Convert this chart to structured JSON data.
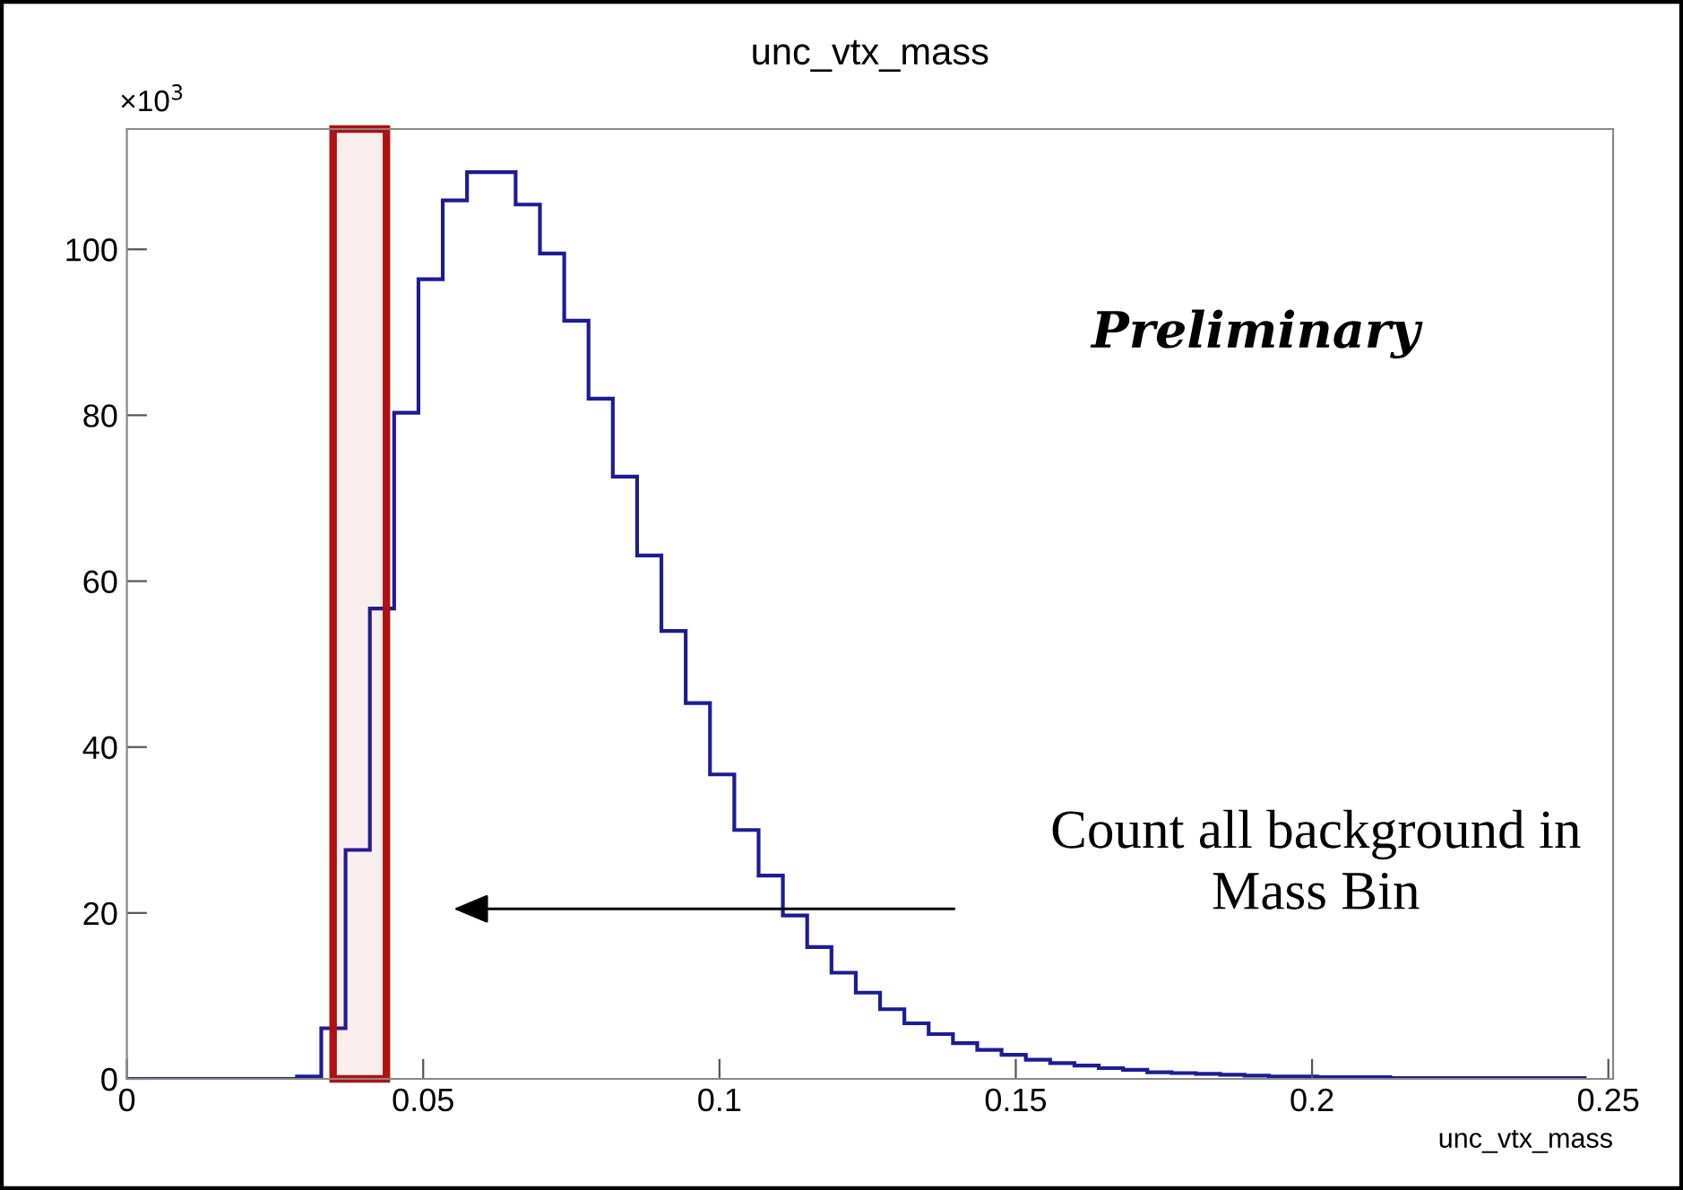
{
  "chart_data": {
    "type": "histogram",
    "title": "unc_vtx_mass",
    "xlabel": "unc_vtx_mass",
    "color": "#1c1c96",
    "bins": [
      0,
      0.0041,
      0.0082,
      0.0123,
      0.0164,
      0.0205,
      0.0246,
      0.0287,
      0.0328,
      0.0369,
      0.041,
      0.0451,
      0.0492,
      0.0533,
      0.0574,
      0.0615,
      0.0656,
      0.0697,
      0.0738,
      0.0779,
      0.082,
      0.0861,
      0.0902,
      0.0943,
      0.0984,
      0.1025,
      0.1066,
      0.1107,
      0.1148,
      0.1189,
      0.123,
      0.1271,
      0.1312,
      0.1353,
      0.1394,
      0.1435,
      0.1476,
      0.1517,
      0.1558,
      0.1599,
      0.164,
      0.1681,
      0.1722,
      0.1763,
      0.1804,
      0.1845,
      0.1886,
      0.1927,
      0.1968,
      0.2009,
      0.205,
      0.2091,
      0.2132,
      0.2173,
      0.2214,
      0.2255,
      0.2296,
      0.2337,
      0.2378,
      0.2419,
      0.246
    ],
    "values": [
      0,
      0,
      0,
      0,
      0,
      0,
      0,
      0.3,
      6.1,
      27.6,
      56.7,
      80.3,
      96.4,
      105.9,
      109.3,
      109.3,
      105.4,
      99.5,
      91.4,
      82.0,
      72.6,
      63.1,
      54.0,
      45.3,
      36.7,
      30.0,
      24.5,
      19.7,
      15.9,
      12.8,
      10.4,
      8.4,
      6.7,
      5.4,
      4.3,
      3.5,
      2.9,
      2.3,
      1.9,
      1.6,
      1.3,
      1.1,
      0.8,
      0.7,
      0.6,
      0.5,
      0.4,
      0.3,
      0.3,
      0.2,
      0.2,
      0.2,
      0.1,
      0.1,
      0.1,
      0.1,
      0.1,
      0.1,
      0.1,
      0.1
    ],
    "xlim": [
      0,
      0.2508
    ],
    "xticks": [
      0,
      0.05,
      0.1,
      0.15,
      0.2,
      0.25
    ],
    "ylim": [
      0,
      114.5
    ],
    "yticks": [
      0,
      20,
      40,
      60,
      80,
      100
    ],
    "bands": [
      {
        "axis": "x",
        "from": 0.0348,
        "to": 0.0438,
        "color": "#b01010"
      }
    ],
    "annotations": [
      "×10$^{3}$",
      "Preliminary",
      "Count all background in\nMass Bin"
    ]
  }
}
